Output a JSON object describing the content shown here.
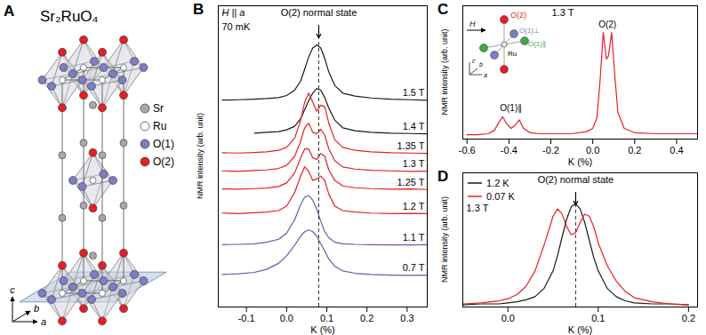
{
  "diagram": {
    "panel": "A",
    "title": "Sr₂RuO₄",
    "legend": [
      {
        "label": "Sr",
        "color": "#a8a8a8"
      },
      {
        "label": "Ru",
        "color": "#ffffff"
      },
      {
        "label": "O(1)",
        "color": "#7b7fc4"
      },
      {
        "label": "O(2)",
        "color": "#e41f26"
      }
    ],
    "axes": [
      "c",
      "b",
      "a"
    ]
  },
  "chart_data": [
    {
      "panel": "B",
      "type": "line",
      "title": "H || a",
      "subtitle": "70 mK",
      "x_label": "K (%)",
      "y_label": "NMR intensity (arb. unit)",
      "xlim": [
        -0.17,
        0.35
      ],
      "ylim": [
        0.5,
        10.5
      ],
      "xticks": [
        -0.1,
        {
          "value": 0,
          "label": "0.0"
        },
        0.1,
        0.2,
        0.3
      ],
      "tick_labels": "x",
      "annotations": [
        {
          "text": "O(2) normal state",
          "x": 0.08,
          "line_style": "dashed"
        }
      ],
      "x": [
        -0.16,
        -0.12,
        -0.08,
        -0.05,
        -0.02,
        0,
        0.02,
        0.035,
        0.045,
        0.055,
        0.065,
        0.075,
        0.085,
        0.095,
        0.105,
        0.12,
        0.14,
        0.17,
        0.21,
        0.26,
        0.31,
        0.35
      ],
      "series": [
        {
          "name": "1.5 T",
          "color": "#1a1a1a",
          "values": [
            7.37,
            7.38,
            7.4,
            7.42,
            7.45,
            7.52,
            7.7,
            8.0,
            8.4,
            8.8,
            9.1,
            9.2,
            9.1,
            8.75,
            8.3,
            7.85,
            7.6,
            7.5,
            7.44,
            7.4,
            7.38,
            7.36
          ]
        },
        {
          "name": "1.4 T",
          "color": "#1a1a1a",
          "values": [
            null,
            null,
            6.27,
            6.3,
            6.32,
            6.38,
            6.5,
            6.75,
            7.05,
            7.35,
            7.6,
            7.75,
            7.7,
            7.45,
            7.1,
            6.7,
            6.45,
            6.35,
            6.3,
            6.27,
            6.26,
            6.25
          ]
        },
        {
          "name": "1.35 T",
          "color": "#e41f26",
          "values": [
            5.62,
            5.61,
            5.63,
            5.65,
            5.7,
            5.8,
            6.1,
            6.7,
            7.3,
            7.6,
            7.3,
            7.0,
            7.2,
            7.15,
            6.6,
            6.05,
            5.8,
            5.7,
            5.65,
            5.62,
            5.61,
            5.6
          ]
        },
        {
          "name": "1.3 T",
          "color": "#e41f26",
          "values": [
            5.02,
            5.0,
            5.03,
            5.05,
            5.1,
            5.2,
            5.5,
            6.0,
            6.45,
            6.6,
            6.3,
            6.25,
            6.4,
            6.2,
            5.75,
            5.35,
            5.15,
            5.08,
            5.04,
            5.02,
            5.0,
            5.01
          ]
        },
        {
          "name": "1.25 T",
          "color": "#e41f26",
          "values": [
            4.42,
            4.41,
            4.43,
            4.45,
            4.5,
            4.62,
            4.95,
            5.45,
            5.75,
            5.75,
            5.45,
            5.4,
            5.6,
            5.5,
            5.05,
            4.7,
            4.52,
            4.46,
            4.43,
            4.41,
            4.42,
            4.4
          ]
        },
        {
          "name": "1.2 T",
          "color": "#e41f26",
          "values": [
            3.62,
            3.6,
            3.63,
            3.65,
            3.7,
            3.85,
            4.3,
            4.85,
            5.15,
            5.0,
            4.7,
            4.75,
            4.85,
            4.7,
            4.25,
            3.85,
            3.7,
            3.65,
            3.62,
            3.6,
            3.61,
            3.6
          ]
        },
        {
          "name": "1.1 T",
          "color": "#5c5fa8",
          "values": [
            2.57,
            2.58,
            2.6,
            2.65,
            2.75,
            2.95,
            3.4,
            3.9,
            4.15,
            4.2,
            4.05,
            3.75,
            3.35,
            3.0,
            2.8,
            2.65,
            2.6,
            2.58,
            2.57,
            2.56,
            2.56,
            2.57
          ]
        },
        {
          "name": "0.7 T",
          "color": "#5c5fa8",
          "values": [
            1.58,
            1.6,
            1.65,
            1.75,
            1.95,
            2.2,
            2.55,
            2.85,
            3.0,
            3.06,
            3.0,
            2.85,
            2.6,
            2.35,
            2.1,
            1.85,
            1.7,
            1.62,
            1.58,
            1.56,
            1.55,
            1.56
          ]
        }
      ]
    },
    {
      "panel": "C",
      "type": "line",
      "title": "1.3 T",
      "x_label": "K (%)",
      "y_label": "NMR intensity (arb. unit)",
      "xlim": [
        -0.62,
        0.5
      ],
      "ylim": [
        0,
        1.25
      ],
      "xticks": [
        -0.6,
        -0.4,
        -0.2,
        {
          "value": 0,
          "label": "0.0"
        },
        0.2,
        0.4
      ],
      "tick_labels": "x",
      "annotations": [
        {
          "text": "O(2)",
          "x": 0.07
        },
        {
          "text": "O(1)∥",
          "x": -0.39
        }
      ],
      "inset": {
        "field": "H",
        "axes": [
          "c",
          "b",
          "a"
        ],
        "atoms": [
          {
            "label": "O(2)",
            "color": "#e41f26"
          },
          {
            "label": "O(1)⊥",
            "color": "#7b7fc4"
          },
          {
            "label": "O(1)∥",
            "color": "#3ea84a"
          },
          {
            "label": "Ru",
            "color": "#ffffff"
          }
        ]
      },
      "x": [
        -0.6,
        -0.55,
        -0.5,
        -0.47,
        -0.45,
        -0.43,
        -0.41,
        -0.39,
        -0.37,
        -0.35,
        -0.33,
        -0.3,
        -0.25,
        -0.2,
        -0.1,
        -0.03,
        0,
        0.02,
        0.035,
        0.05,
        0.065,
        0.075,
        0.09,
        0.105,
        0.12,
        0.15,
        0.2,
        0.3,
        0.4,
        0.5
      ],
      "series": [
        {
          "color": "#e41f26",
          "values": [
            0.04,
            0.04,
            0.05,
            0.08,
            0.15,
            0.21,
            0.14,
            0.1,
            0.13,
            0.18,
            0.1,
            0.06,
            0.05,
            0.05,
            0.05,
            0.07,
            0.1,
            0.2,
            0.55,
            1.0,
            0.75,
            0.78,
            1.0,
            0.6,
            0.25,
            0.1,
            0.06,
            0.05,
            0.05,
            0.05
          ]
        }
      ]
    },
    {
      "panel": "D",
      "type": "line",
      "title": "1.3 T",
      "legend": "top-left",
      "x_label": "K (%)",
      "y_label": "NMR intensity (arb. unit)",
      "xlim": [
        -0.05,
        0.21
      ],
      "ylim": [
        0,
        1.3
      ],
      "xticks": [
        {
          "value": 0,
          "label": "0.0"
        },
        0.1,
        0.2
      ],
      "tick_labels": "x",
      "annotations": [
        {
          "text": "O(2) normal state",
          "x": 0.075,
          "line_style": "dashed"
        }
      ],
      "x": [
        -0.05,
        -0.03,
        -0.01,
        0,
        0.01,
        0.02,
        0.03,
        0.04,
        0.05,
        0.055,
        0.06,
        0.065,
        0.07,
        0.075,
        0.08,
        0.085,
        0.09,
        0.095,
        0.1,
        0.11,
        0.12,
        0.13,
        0.14,
        0.16,
        0.18,
        0.2
      ],
      "series": [
        {
          "name": "1.2 K",
          "color": "#1a1a1a",
          "values": [
            0.02,
            0.03,
            0.03,
            0.04,
            0.05,
            0.07,
            0.1,
            0.18,
            0.35,
            0.5,
            0.68,
            0.85,
            0.97,
            1.0,
            0.95,
            0.82,
            0.65,
            0.48,
            0.35,
            0.18,
            0.1,
            0.06,
            0.04,
            0.03,
            0.03,
            0.02
          ]
        },
        {
          "name": "0.07 K",
          "color": "#e41f26",
          "values": [
            0.03,
            0.04,
            0.06,
            0.08,
            0.12,
            0.2,
            0.35,
            0.6,
            0.88,
            0.95,
            0.9,
            0.78,
            0.7,
            0.72,
            0.82,
            0.9,
            0.88,
            0.78,
            0.62,
            0.4,
            0.25,
            0.15,
            0.09,
            0.05,
            0.03,
            0.02
          ]
        }
      ]
    }
  ]
}
